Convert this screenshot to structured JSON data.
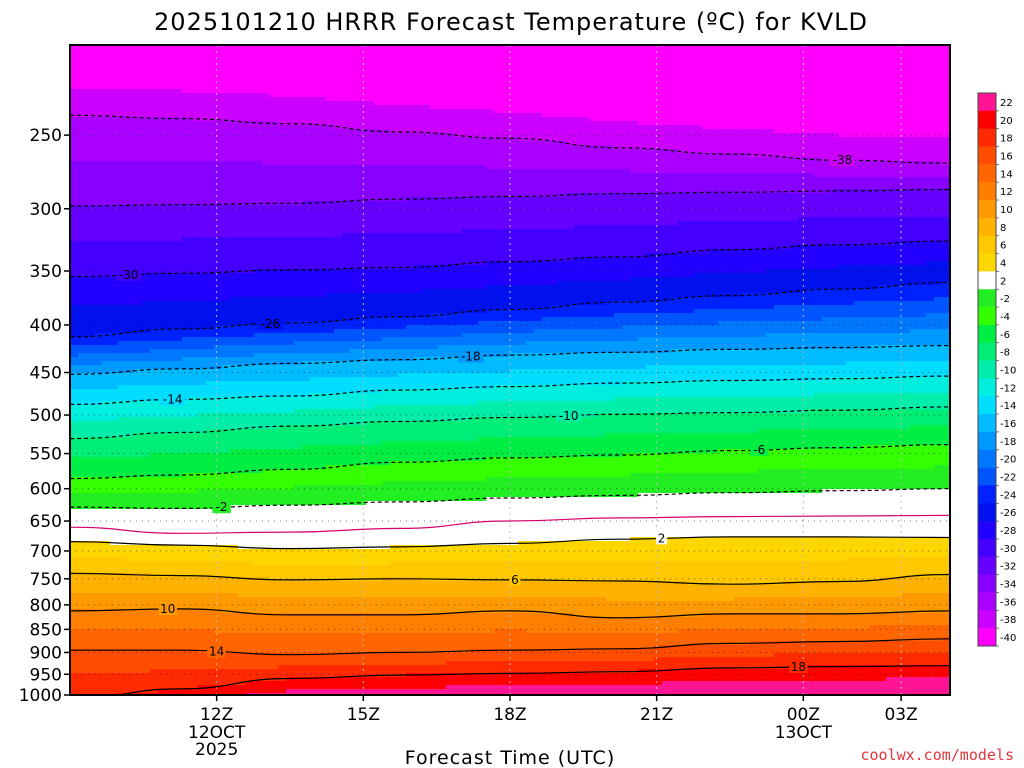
{
  "chart_data": {
    "type": "heatmap",
    "title": "2025101210 HRRR Forecast Temperature (ºC) for KVLD",
    "xlabel": "Forecast Time (UTC)",
    "ylabel": "",
    "source": "coolwx.com/models",
    "y_axis": {
      "scale": "log",
      "units": "hPa",
      "range": [
        200,
        1000
      ],
      "ticks": [
        250,
        300,
        350,
        400,
        450,
        500,
        550,
        600,
        650,
        700,
        750,
        800,
        850,
        900,
        950,
        1000
      ],
      "labels": [
        "250",
        "300",
        "350",
        "400",
        "450",
        "500",
        "550",
        "600",
        "650",
        "700",
        "750",
        "800",
        "850",
        "900",
        "950",
        "1000"
      ]
    },
    "x_axis": {
      "units": "hours from 2025-10-12 09Z",
      "range": [
        0,
        18
      ],
      "ticks": [
        {
          "hour": 3,
          "label": "12Z",
          "sub1": "12OCT",
          "sub2": "2025"
        },
        {
          "hour": 6,
          "label": "15Z",
          "sub1": "",
          "sub2": ""
        },
        {
          "hour": 9,
          "label": "18Z",
          "sub1": "",
          "sub2": ""
        },
        {
          "hour": 12,
          "label": "21Z",
          "sub1": "",
          "sub2": ""
        },
        {
          "hour": 15,
          "label": "00Z",
          "sub1": "13OCT",
          "sub2": ""
        },
        {
          "hour": 17,
          "label": "03Z",
          "sub1": "",
          "sub2": ""
        }
      ]
    },
    "colorbar": {
      "levels": [
        22,
        20,
        18,
        16,
        14,
        12,
        10,
        8,
        6,
        4,
        2,
        -2,
        -4,
        -6,
        -8,
        -10,
        -12,
        -14,
        -16,
        -18,
        -20,
        -22,
        -24,
        -26,
        -28,
        -30,
        -32,
        -34,
        -36,
        -38,
        -40
      ],
      "colors": [
        "#ff1493",
        "#ff0000",
        "#ff2a00",
        "#ff4d00",
        "#ff6600",
        "#ff7f00",
        "#ff9900",
        "#ffb300",
        "#ffc800",
        "#ffd700",
        "#ffffff",
        "#22ee22",
        "#33ff00",
        "#00ee44",
        "#00ee77",
        "#00eeaa",
        "#00eedd",
        "#00ddff",
        "#00bbff",
        "#0099ff",
        "#0077ff",
        "#0055ff",
        "#0022ff",
        "#0011ee",
        "#2200ff",
        "#4400ff",
        "#6600ff",
        "#8800ff",
        "#aa00ff",
        "#cc00ff",
        "#ff00ff"
      ]
    },
    "isotherms": [
      {
        "value": -38,
        "label": "-38",
        "style": "dashed",
        "pressure": [
          238,
          240,
          243,
          248,
          252,
          258,
          262,
          266,
          268
        ],
        "label_hour": 15.8
      },
      {
        "value": -34,
        "label": "",
        "style": "dashed",
        "pressure": [
          298,
          297,
          296,
          293,
          291,
          289,
          288,
          287,
          286
        ],
        "label_hour": null
      },
      {
        "value": -30,
        "label": "-30",
        "style": "dashed",
        "pressure": [
          355,
          352,
          349,
          347,
          342,
          338,
          332,
          328,
          325
        ],
        "label_hour": 1.2
      },
      {
        "value": -26,
        "label": "-26",
        "style": "dashed",
        "pressure": [
          412,
          404,
          398,
          392,
          385,
          378,
          372,
          366,
          360
        ],
        "label_hour": 4.1
      },
      {
        "value": -18,
        "label": "-18",
        "style": "dashed",
        "pressure": [
          452,
          446,
          440,
          436,
          431,
          428,
          425,
          423,
          421
        ],
        "label_hour": 8.2
      },
      {
        "value": -14,
        "label": "-14",
        "style": "dashed",
        "pressure": [
          487,
          481,
          477,
          470,
          466,
          462,
          459,
          457,
          454
        ],
        "label_hour": 2.1
      },
      {
        "value": -10,
        "label": "-10",
        "style": "dashed",
        "pressure": [
          530,
          522,
          514,
          508,
          503,
          499,
          497,
          494,
          490
        ],
        "label_hour": 10.2
      },
      {
        "value": -6,
        "label": "-6",
        "style": "dashed",
        "pressure": [
          585,
          580,
          572,
          562,
          556,
          552,
          546,
          542,
          538
        ],
        "label_hour": 14.1
      },
      {
        "value": -2,
        "label": "-2",
        "style": "dashed",
        "pressure": [
          628,
          630,
          625,
          620,
          614,
          610,
          606,
          603,
          600
        ],
        "label_hour": 3.1
      },
      {
        "value": 0,
        "label": "",
        "style": "solid-magenta",
        "pressure": [
          660,
          670,
          668,
          662,
          650,
          645,
          643,
          642,
          641
        ],
        "label_hour": null
      },
      {
        "value": 2,
        "label": "2",
        "style": "solid",
        "pressure": [
          684,
          690,
          696,
          693,
          687,
          680,
          676,
          676,
          677
        ],
        "label_hour": 12.1
      },
      {
        "value": 6,
        "label": "6",
        "style": "solid",
        "pressure": [
          740,
          744,
          752,
          750,
          752,
          754,
          760,
          755,
          742
        ],
        "label_hour": 9.1
      },
      {
        "value": 10,
        "label": "10",
        "style": "solid",
        "pressure": [
          812,
          808,
          820,
          820,
          812,
          826,
          818,
          818,
          812
        ],
        "label_hour": 2.0
      },
      {
        "value": 14,
        "label": "14",
        "style": "solid",
        "pressure": [
          895,
          895,
          905,
          900,
          895,
          892,
          880,
          876,
          870
        ],
        "label_hour": 3.0
      },
      {
        "value": 18,
        "label": "18",
        "style": "solid",
        "pressure": [
          1010,
          985,
          960,
          952,
          948,
          944,
          935,
          932,
          930
        ],
        "label_hour": 14.9
      }
    ],
    "ground": {
      "pressure": 1000,
      "color": "#a0522d"
    }
  }
}
